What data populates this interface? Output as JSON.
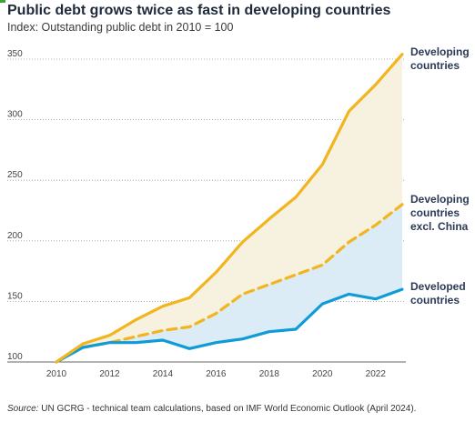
{
  "header": {
    "title": "Public debt grows twice as fast in developing countries",
    "subtitle": "Index: Outstanding public debt in 2010 = 100"
  },
  "footer": {
    "source_label": "Source:",
    "source_text": "UN GCRG - technical team calculations, based on IMF World Economic Outlook (April 2024)."
  },
  "chart_data": {
    "type": "line",
    "title": "Public debt grows twice as fast in developing countries",
    "subtitle": "Index: Outstanding public debt in 2010 = 100",
    "xlabel": "",
    "ylabel": "",
    "x": [
      2010,
      2011,
      2012,
      2013,
      2014,
      2015,
      2016,
      2017,
      2018,
      2019,
      2020,
      2021,
      2022,
      2023
    ],
    "xticks": [
      2010,
      2012,
      2014,
      2016,
      2018,
      2020,
      2022
    ],
    "yticks": [
      100,
      150,
      200,
      250,
      300,
      350
    ],
    "xlim": [
      2010,
      2023
    ],
    "ylim": [
      100,
      355
    ],
    "grid": "horizontal dotted",
    "legend": "direct labels at right end of lines",
    "series": [
      {
        "name": "Developing countries",
        "label_lines": [
          "Developing",
          "countries"
        ],
        "color": "#f2b51f",
        "style": "solid",
        "values": [
          100,
          115,
          122,
          135,
          146,
          153,
          174,
          199,
          218,
          236,
          263,
          307,
          329,
          354
        ]
      },
      {
        "name": "Developing countries excl. China",
        "label_lines": [
          "Developing",
          "countries",
          "excl. China"
        ],
        "color": "#f2b51f",
        "style": "dashed",
        "values": [
          100,
          112,
          116,
          121,
          126,
          129,
          140,
          156,
          164,
          172,
          180,
          199,
          213,
          230
        ]
      },
      {
        "name": "Developed countries",
        "label_lines": [
          "Developed",
          "countries"
        ],
        "color": "#0f9bd7",
        "style": "solid",
        "values": [
          100,
          112,
          116,
          116,
          118,
          111,
          116,
          119,
          125,
          127,
          148,
          156,
          152,
          160
        ]
      }
    ],
    "fills": [
      {
        "between": [
          "Developing countries",
          "Developing countries excl. China"
        ],
        "color": "#f7f1df"
      },
      {
        "between": [
          "Developing countries excl. China",
          "Developed countries"
        ],
        "color": "#dcecf6"
      }
    ]
  }
}
